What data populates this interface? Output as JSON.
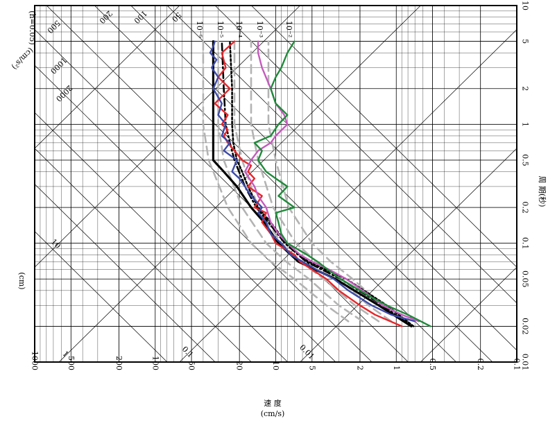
{
  "chart_data": {
    "type": "line",
    "orientation": "rotated-90-clockwise",
    "scale": "tripartite log-log",
    "grid": true,
    "xaxis": {
      "label": "周 期(秒)",
      "range": [
        0.01,
        10
      ],
      "ticks": [
        "0.01",
        "0.02",
        "0.05",
        "0.1",
        "0.2",
        "0.5",
        "1",
        "2",
        "5",
        "10"
      ]
    },
    "yaxis": {
      "label": "速 度",
      "unit": "(cm/s)",
      "range": [
        0.1,
        1000
      ],
      "ticks": [
        "0.1",
        "0.2",
        "0.5",
        "1",
        "2",
        "5",
        "10",
        "20",
        "50",
        "100",
        "200",
        "500",
        "1000"
      ]
    },
    "acceleration_axis": {
      "label": "(cm/s²)",
      "ticks": [
        "2000",
        "1000",
        "500",
        "200",
        "100",
        "50"
      ],
      "damping_label": "(h=0.05)"
    },
    "displacement_axis": {
      "label": "(cm)",
      "ticks": [
        "10",
        "1",
        "0.1",
        "0.01"
      ]
    },
    "exceedance_labels": [
      "10⁻⁶",
      "10⁻⁵",
      "10⁻⁴",
      "10⁻³",
      "10⁻²"
    ],
    "colors": {
      "black": "#000000",
      "red": "#e8262a",
      "blue": "#3b4aa8",
      "magenta": "#c45bbd",
      "green": "#1f8a3a",
      "gray_dashed": "#b3b3b3"
    },
    "series": [
      {
        "color": "#000000",
        "style": "solid",
        "width": 3.2,
        "x": [
          0.02,
          0.03,
          0.05,
          0.07,
          0.1,
          0.15,
          0.2,
          0.3,
          0.4,
          0.5,
          1,
          2,
          5
        ],
        "y": [
          0.75,
          1.4,
          3.2,
          6.5,
          9.5,
          12.5,
          16,
          21,
          27,
          33,
          33,
          33,
          33
        ]
      },
      {
        "color": "#000000",
        "style": "dotted",
        "width": 2.6,
        "x": [
          0.02,
          0.03,
          0.05,
          0.07,
          0.1,
          0.15,
          0.2,
          0.3,
          0.4,
          0.5,
          0.7,
          1,
          2,
          5
        ],
        "y": [
          0.72,
          1.2,
          2.6,
          5.4,
          8.2,
          11,
          14,
          17,
          19,
          21,
          22.5,
          23,
          23,
          24
        ]
      },
      {
        "color": "#000000",
        "style": "dash-dot",
        "width": 2.6,
        "x": [
          0.02,
          0.03,
          0.05,
          0.07,
          0.1,
          0.15,
          0.2,
          0.3,
          0.5,
          0.7,
          1,
          2,
          5
        ],
        "y": [
          0.75,
          1.3,
          2.9,
          5.6,
          8.4,
          11.5,
          14.5,
          18,
          22,
          24,
          26,
          27,
          28
        ]
      },
      {
        "color": "#e8262a",
        "style": "solid",
        "width": 2.4,
        "x": [
          0.02,
          0.025,
          0.03,
          0.04,
          0.05,
          0.06,
          0.07,
          0.08,
          0.1,
          0.12,
          0.15,
          0.18,
          0.2,
          0.25,
          0.3,
          0.35,
          0.4,
          0.45,
          0.5,
          0.6,
          0.7,
          0.8,
          0.9,
          1,
          1.2,
          1.5,
          2,
          2.5,
          3,
          4,
          5
        ],
        "y": [
          0.9,
          1.5,
          2.0,
          3.0,
          3.8,
          5.0,
          6.3,
          7.0,
          10,
          11,
          13,
          12,
          15,
          13,
          17,
          15,
          17,
          16,
          19,
          22,
          25,
          27,
          25,
          28,
          25,
          32,
          24,
          30,
          26,
          28,
          22
        ]
      },
      {
        "color": "#3b4aa8",
        "style": "solid",
        "width": 2.4,
        "x": [
          0.022,
          0.025,
          0.03,
          0.04,
          0.05,
          0.06,
          0.07,
          0.08,
          0.1,
          0.12,
          0.15,
          0.18,
          0.2,
          0.25,
          0.3,
          0.35,
          0.4,
          0.5,
          0.6,
          0.7,
          0.8,
          1,
          1.2,
          1.5,
          2,
          2.5,
          3,
          3.5,
          4,
          4.5,
          5
        ],
        "y": [
          0.7,
          1.1,
          1.6,
          2.5,
          3.3,
          4.6,
          6.0,
          7.5,
          9,
          11,
          12,
          14,
          13,
          16,
          18,
          20,
          23,
          21,
          27,
          24,
          28,
          26,
          30,
          28,
          33,
          30,
          34,
          31,
          35,
          33,
          32
        ]
      },
      {
        "color": "#c45bbd",
        "style": "solid",
        "width": 2.4,
        "x": [
          0.022,
          0.025,
          0.03,
          0.04,
          0.05,
          0.06,
          0.07,
          0.08,
          0.1,
          0.12,
          0.15,
          0.2,
          0.25,
          0.3,
          0.4,
          0.5,
          0.6,
          0.7,
          0.8,
          1,
          1.2,
          1.5,
          2,
          3,
          4,
          5
        ],
        "y": [
          0.65,
          0.9,
          1.3,
          1.9,
          2.6,
          3.6,
          5.0,
          6.3,
          8,
          9.5,
          11,
          12,
          14,
          15,
          18,
          16,
          14,
          11,
          10,
          8,
          8.5,
          10,
          11,
          13,
          14,
          14
        ]
      },
      {
        "color": "#1f8a3a",
        "style": "solid",
        "width": 2.4,
        "x": [
          0.02,
          0.025,
          0.03,
          0.035,
          0.04,
          0.05,
          0.06,
          0.07,
          0.08,
          0.1,
          0.12,
          0.15,
          0.18,
          0.2,
          0.25,
          0.3,
          0.35,
          0.4,
          0.5,
          0.6,
          0.7,
          0.8,
          1,
          1.2,
          1.5,
          2,
          2.5,
          3,
          4,
          5
        ],
        "y": [
          0.52,
          0.8,
          1.2,
          1.6,
          2.0,
          2.9,
          3.7,
          4.5,
          5.5,
          8,
          9,
          9.5,
          10,
          7,
          9.5,
          8,
          10,
          12,
          14,
          13,
          15,
          11,
          9.5,
          8,
          10,
          11,
          10,
          9,
          8,
          7
        ]
      },
      {
        "color": "#b3b3b3",
        "style": "dashed",
        "width": 2.6,
        "x": [
          0.022,
          0.03,
          0.05,
          0.07,
          0.1,
          0.2,
          0.5,
          1,
          2,
          5
        ],
        "y": [
          2.5,
          3.8,
          7,
          11,
          16,
          25,
          36,
          40,
          40,
          40
        ]
      },
      {
        "color": "#b3b3b3",
        "style": "dashed",
        "width": 2.6,
        "x": [
          0.022,
          0.03,
          0.05,
          0.07,
          0.1,
          0.2,
          0.5,
          1,
          2,
          5
        ],
        "y": [
          1.9,
          3.0,
          5.3,
          8.2,
          12,
          19,
          27,
          30,
          30,
          30
        ]
      },
      {
        "color": "#b3b3b3",
        "style": "dashed",
        "width": 2.6,
        "x": [
          0.022,
          0.03,
          0.05,
          0.07,
          0.1,
          0.2,
          0.5,
          1,
          2,
          5
        ],
        "y": [
          1.4,
          2.2,
          4.0,
          6.2,
          9.0,
          14,
          19,
          22,
          22,
          22
        ]
      },
      {
        "color": "#b3b3b3",
        "style": "dashed",
        "width": 2.6,
        "x": [
          0.022,
          0.03,
          0.05,
          0.07,
          0.1,
          0.2,
          0.5,
          1,
          2,
          5
        ],
        "y": [
          1.1,
          1.7,
          3.0,
          4.6,
          6.8,
          10.5,
          14,
          16,
          16,
          16
        ]
      },
      {
        "color": "#b3b3b3",
        "style": "dashed",
        "width": 2.6,
        "x": [
          0.022,
          0.03,
          0.05,
          0.07,
          0.1,
          0.2,
          0.5,
          1,
          2,
          5
        ],
        "y": [
          0.85,
          1.3,
          2.3,
          3.5,
          5.0,
          7.8,
          10,
          11.5,
          11.5,
          11.5
        ]
      }
    ]
  }
}
